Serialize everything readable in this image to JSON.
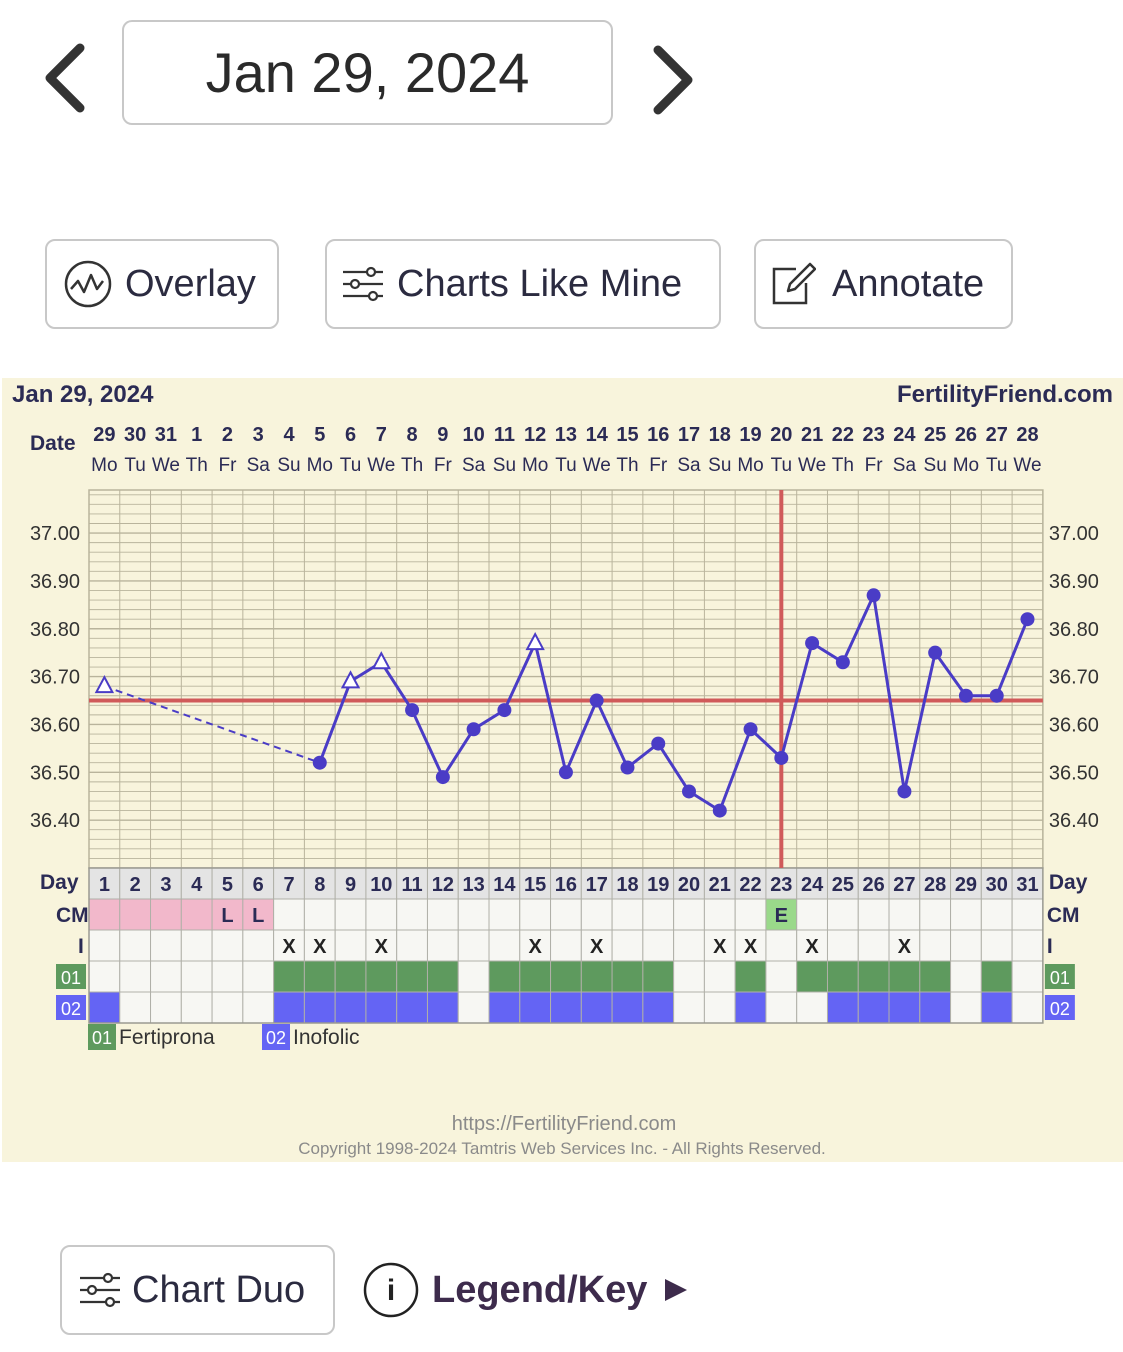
{
  "header": {
    "date_label": "Jan 29, 2024"
  },
  "toolbar": {
    "overlay_label": "Overlay",
    "charts_like_mine_label": "Charts Like Mine",
    "annotate_label": "Annotate"
  },
  "footer_controls": {
    "chart_duo_label": "Chart Duo",
    "legend_label": "Legend/Key",
    "info_glyph": "i"
  },
  "chart_data": {
    "type": "line",
    "title": "Jan 29, 2024",
    "site": "FertilityFriend.com",
    "date_row_label": "Date",
    "dates": [
      "29",
      "30",
      "31",
      "1",
      "2",
      "3",
      "4",
      "5",
      "6",
      "7",
      "8",
      "9",
      "10",
      "11",
      "12",
      "13",
      "14",
      "15",
      "16",
      "17",
      "18",
      "19",
      "20",
      "21",
      "22",
      "23",
      "24",
      "25",
      "26",
      "27",
      "28"
    ],
    "weekdays": [
      "Mo",
      "Tu",
      "We",
      "Th",
      "Fr",
      "Sa",
      "Su",
      "Mo",
      "Tu",
      "We",
      "Th",
      "Fr",
      "Sa",
      "Su",
      "Mo",
      "Tu",
      "We",
      "Th",
      "Fr",
      "Sa",
      "Su",
      "Mo",
      "Tu",
      "We",
      "Th",
      "Fr",
      "Sa",
      "Su",
      "Mo",
      "Tu",
      "We"
    ],
    "days": [
      1,
      2,
      3,
      4,
      5,
      6,
      7,
      8,
      9,
      10,
      11,
      12,
      13,
      14,
      15,
      16,
      17,
      18,
      19,
      20,
      21,
      22,
      23,
      24,
      25,
      26,
      27,
      28,
      29,
      30,
      31
    ],
    "y_ticks": [
      "37.00",
      "36.90",
      "36.80",
      "36.70",
      "36.60",
      "36.50",
      "36.40"
    ],
    "ylim": [
      36.3,
      37.09
    ],
    "temperatures": [
      36.68,
      null,
      null,
      null,
      null,
      null,
      null,
      36.52,
      36.69,
      36.73,
      36.63,
      36.49,
      36.59,
      36.63,
      36.77,
      36.5,
      36.65,
      36.51,
      36.56,
      36.46,
      36.42,
      36.59,
      36.53,
      36.77,
      36.73,
      36.87,
      36.46,
      36.75,
      36.66,
      36.66,
      36.82
    ],
    "open_triangle_days": [
      1,
      9,
      10,
      15
    ],
    "dashed_segment_days": [
      1,
      8
    ],
    "coverline": 36.65,
    "ovulation_day": 23,
    "row_labels": {
      "day": "Day",
      "cm": "CM",
      "i": "I",
      "med1": "01",
      "med2": "02"
    },
    "cm_row": [
      "",
      "",
      "",
      "",
      "L",
      "L",
      "",
      "",
      "",
      "",
      "",
      "",
      "",
      "",
      "",
      "",
      "",
      "",
      "",
      "",
      "",
      "",
      "E",
      "",
      "",
      "",
      "",
      "",
      "",
      "",
      ""
    ],
    "cm_pink_days": [
      1,
      2,
      3,
      4,
      5,
      6
    ],
    "cm_green_days": [
      23
    ],
    "intercourse_days": [
      7,
      8,
      10,
      15,
      17,
      21,
      22,
      24,
      27
    ],
    "intercourse_mark": "X",
    "med1_days": [
      7,
      8,
      9,
      10,
      11,
      12,
      14,
      15,
      16,
      17,
      18,
      19,
      22,
      24,
      25,
      26,
      27,
      28,
      30
    ],
    "med2_days": [
      1,
      7,
      8,
      9,
      10,
      11,
      12,
      14,
      15,
      16,
      17,
      18,
      19,
      22,
      25,
      26,
      27,
      28,
      30
    ],
    "legend": [
      {
        "code": "01",
        "name": "Fertiprona",
        "color": "#5e9a5e"
      },
      {
        "code": "02",
        "name": "Inofolic",
        "color": "#6464f4"
      }
    ],
    "footer_url": "https://FertilityFriend.com",
    "footer_copyright": "Copyright 1998-2024 Tamtris Web Services Inc. - All Rights Reserved.",
    "colors": {
      "line": "#4a3cc6",
      "coverline": "#d05a5a",
      "grid": "#b9b49c",
      "cm_pink": "#f2b8cb",
      "cm_green": "#9ad98a",
      "med1": "#5e9a5e",
      "med2": "#6464f4",
      "panel": "#f8f4dc"
    }
  }
}
